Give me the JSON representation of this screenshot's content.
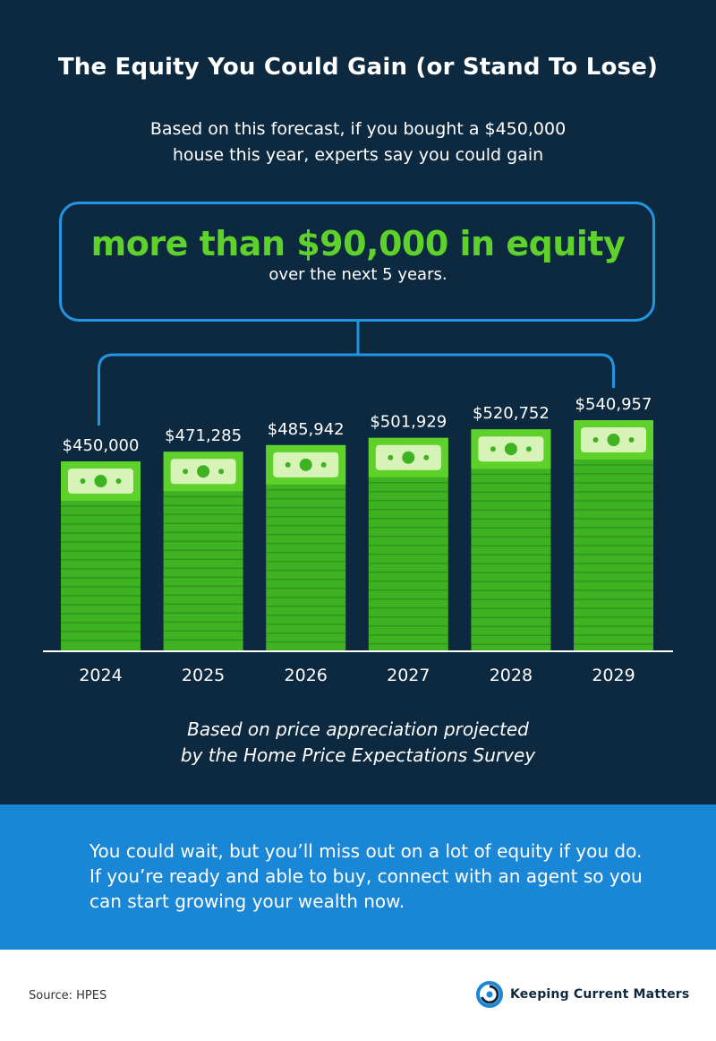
{
  "header": {
    "title": "The Equity You Could Gain (or Stand To Lose)",
    "intro_line1": "Based on this forecast, if you bought a $450,000",
    "intro_line2": "house this year, experts say you could gain"
  },
  "callout": {
    "headline": "more than $90,000 in equity",
    "subline": "over the next 5 years."
  },
  "chart_data": {
    "type": "bar",
    "categories": [
      "2024",
      "2025",
      "2026",
      "2027",
      "2028",
      "2029"
    ],
    "values": [
      450000,
      471285,
      485942,
      501929,
      520752,
      540957
    ],
    "labels": [
      "$450,000",
      "$471,285",
      "$485,942",
      "$501,929",
      "$520,752",
      "$540,957"
    ],
    "title": "",
    "xlabel": "",
    "ylabel": "",
    "grid": false,
    "legend": "none"
  },
  "footnote": {
    "line1": "Based on price appreciation projected",
    "line2": "by the Home Price Expectations Survey"
  },
  "cta": {
    "text": "You could wait, but you’ll miss out on a lot of equity if you do. If you’re ready and able to buy, connect with an agent so you can start growing your wealth now."
  },
  "footer": {
    "source": "Source: HPES",
    "brand": "Keeping Current Matters",
    "brand_icon": "kcm-swirl-logo"
  },
  "colors": {
    "background": "#0d2940",
    "accent_green": "#5fd12b",
    "bar_green": "#3fb222",
    "bill_light": "#d8f3b8",
    "callout_border": "#2196e0",
    "cta_band": "#1a87d6"
  }
}
